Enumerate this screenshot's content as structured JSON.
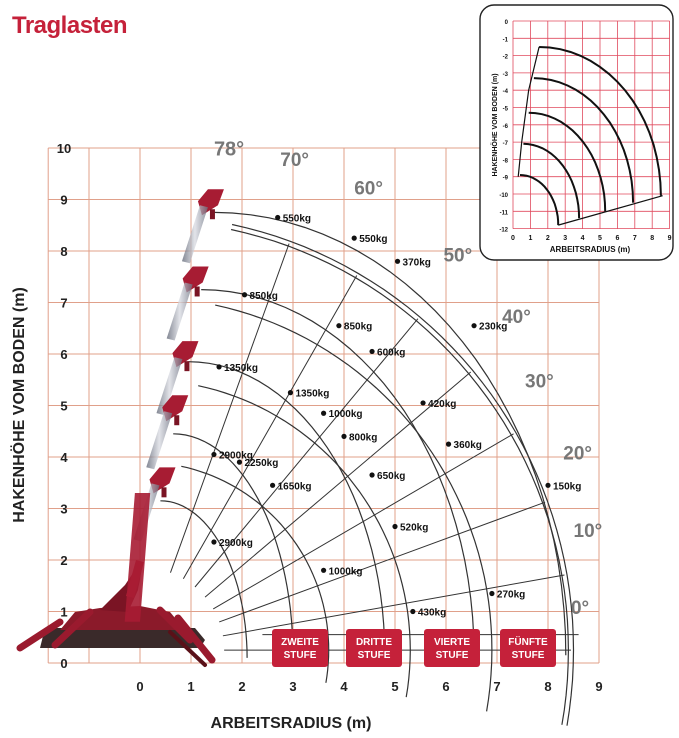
{
  "page_title": "Traglasten",
  "chart_data": {
    "type": "load-chart",
    "title": "Traglasten",
    "xlabel": "ARBEITSRADIUS (m)",
    "ylabel": "HAKENHÖHE VOM BODEN (m)",
    "xlim": [
      -2.7,
      9
    ],
    "ylim": [
      0,
      10
    ],
    "x_ticks": [
      "0",
      "1",
      "2",
      "3",
      "4",
      "5",
      "6",
      "7",
      "8",
      "9"
    ],
    "y_ticks": [
      "0",
      "1",
      "2",
      "3",
      "4",
      "5",
      "6",
      "7",
      "8",
      "9",
      "10"
    ],
    "grid": true,
    "colors": {
      "grid": "#e0a08a",
      "curve": "#333333",
      "badge": "#c5213a",
      "title": "#c5213a"
    },
    "angles": [
      "0°",
      "10°",
      "20°",
      "30°",
      "40°",
      "50°",
      "60°",
      "70°",
      "78°"
    ],
    "stages": [
      "ZWEITE STUFE",
      "DRITTE STUFE",
      "VIERTE STUFE",
      "FÜNFTE STUFE"
    ],
    "load_points": [
      {
        "x": 2.7,
        "y": 8.65,
        "label": "550kg"
      },
      {
        "x": 4.2,
        "y": 8.25,
        "label": "550kg"
      },
      {
        "x": 5.05,
        "y": 7.8,
        "label": "370kg"
      },
      {
        "x": 2.05,
        "y": 7.15,
        "label": "850kg"
      },
      {
        "x": 3.9,
        "y": 6.55,
        "label": "850kg"
      },
      {
        "x": 4.55,
        "y": 6.05,
        "label": "600kg"
      },
      {
        "x": 6.55,
        "y": 6.55,
        "label": "230kg"
      },
      {
        "x": 1.55,
        "y": 5.75,
        "label": "1350kg"
      },
      {
        "x": 2.95,
        "y": 5.25,
        "label": "1350kg"
      },
      {
        "x": 3.6,
        "y": 4.85,
        "label": "1000kg"
      },
      {
        "x": 5.55,
        "y": 5.05,
        "label": "420kg"
      },
      {
        "x": 4.0,
        "y": 4.4,
        "label": "800kg"
      },
      {
        "x": 6.05,
        "y": 4.25,
        "label": "360kg"
      },
      {
        "x": 1.45,
        "y": 4.05,
        "label": "2900kg"
      },
      {
        "x": 1.95,
        "y": 3.9,
        "label": "2250kg"
      },
      {
        "x": 2.6,
        "y": 3.45,
        "label": "1650kg"
      },
      {
        "x": 4.55,
        "y": 3.65,
        "label": "650kg"
      },
      {
        "x": 8.0,
        "y": 3.45,
        "label": "150kg"
      },
      {
        "x": 1.45,
        "y": 2.35,
        "label": "2900kg"
      },
      {
        "x": 5.0,
        "y": 2.65,
        "label": "520kg"
      },
      {
        "x": 3.6,
        "y": 1.8,
        "label": "1000kg"
      },
      {
        "x": 6.9,
        "y": 1.35,
        "label": "270kg"
      },
      {
        "x": 5.35,
        "y": 1.0,
        "label": "430kg"
      }
    ]
  },
  "inset": {
    "xlabel": "ARBEITSRADIUS (m)",
    "ylabel": "HAKENHÖHE VOM BODEN (m)",
    "x_ticks": [
      "0",
      "1",
      "2",
      "3",
      "4",
      "5",
      "6",
      "7",
      "8",
      "9"
    ],
    "y_ticks": [
      "0",
      "-1",
      "-2",
      "-3",
      "-4",
      "-5",
      "-6",
      "-7",
      "-8",
      "-9",
      "-10",
      "-11",
      "-12"
    ]
  }
}
